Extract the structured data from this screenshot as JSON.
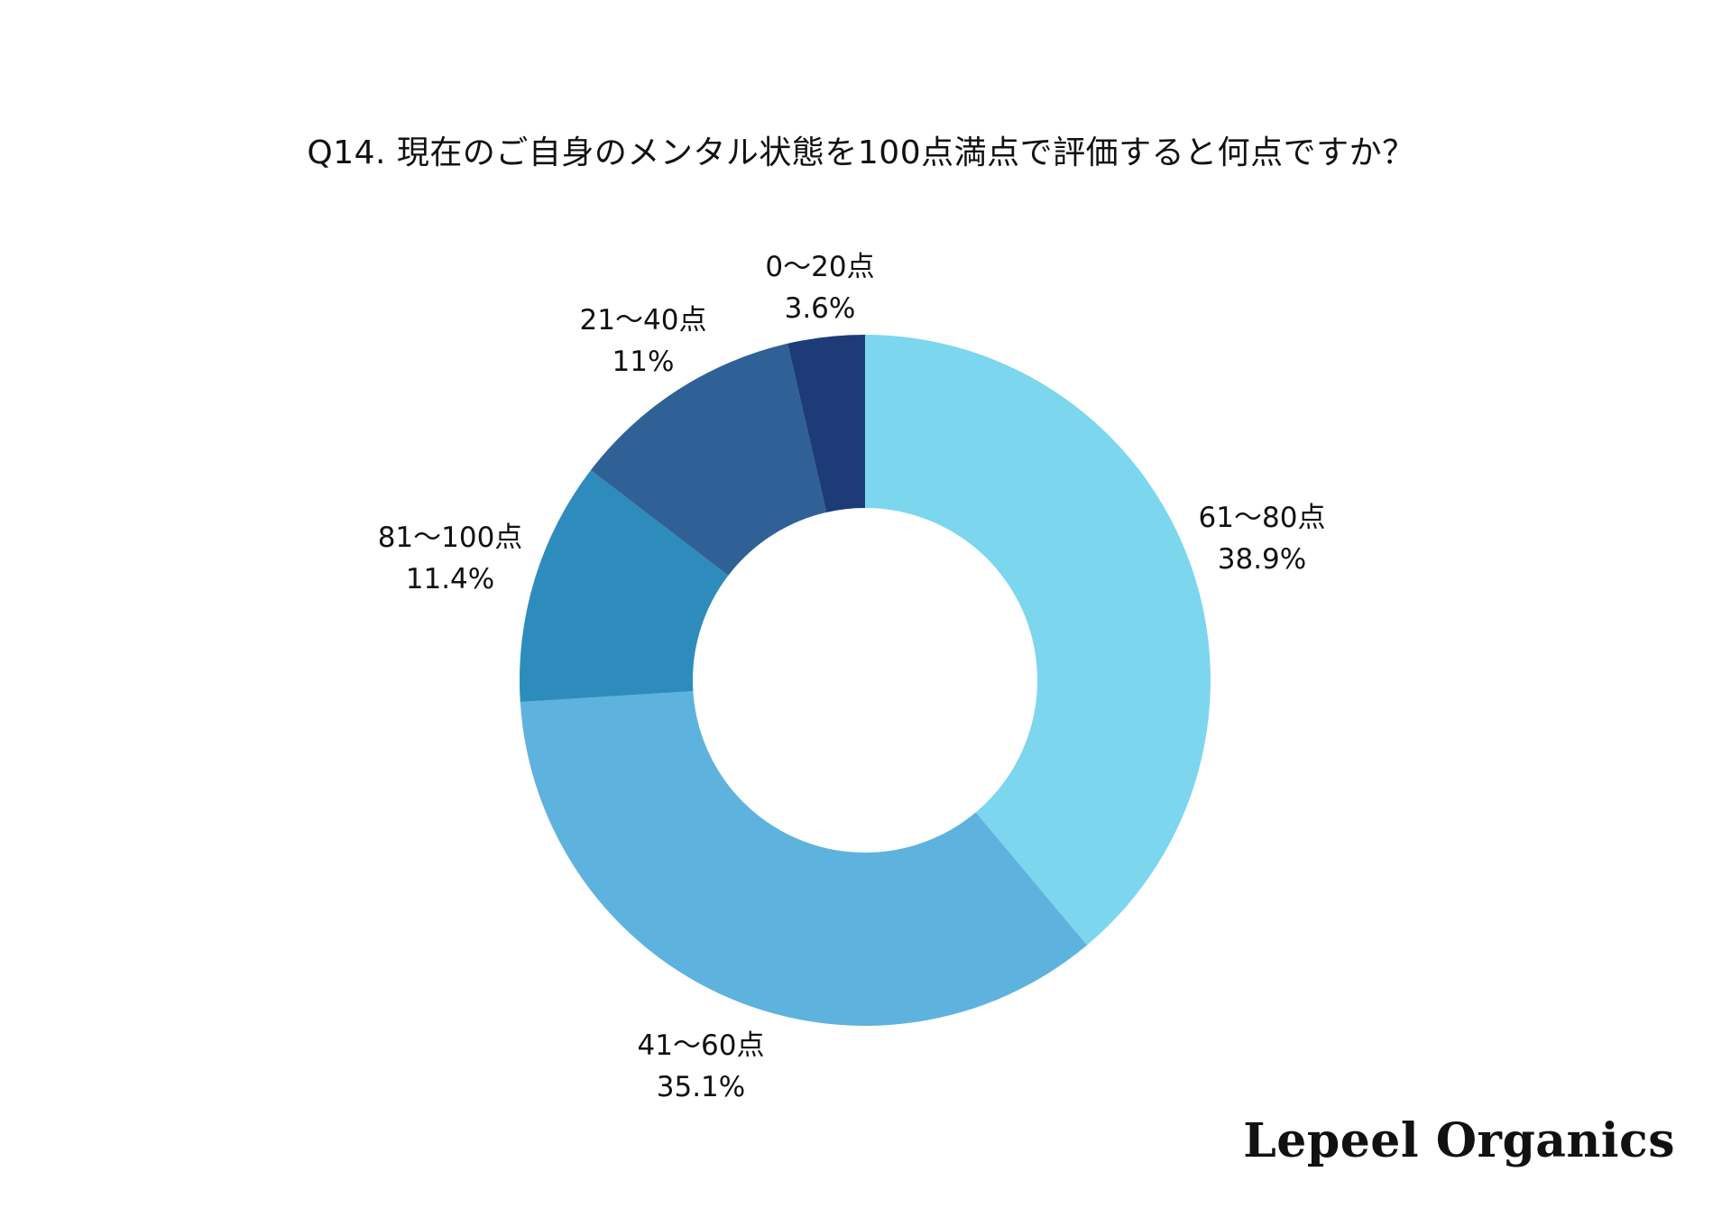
{
  "chart_data": {
    "type": "pie",
    "donut": true,
    "title": "Q14. 現在のご自身のメンタル状態を100点満点で評価すると何点ですか？",
    "start": "top, clockwise",
    "slices": [
      {
        "label": "61〜80点",
        "value": 38.9,
        "value_label": "38.9%",
        "color": "#7CD6EE"
      },
      {
        "label": "41〜60点",
        "value": 35.1,
        "value_label": "35.1%",
        "color": "#5EB2DE"
      },
      {
        "label": "81〜100点",
        "value": 11.4,
        "value_label": "11.4%",
        "color": "#2E8CBC"
      },
      {
        "label": "21〜40点",
        "value": 11,
        "value_label": "11%",
        "color": "#2F6197"
      },
      {
        "label": "0〜20点",
        "value": 3.6,
        "value_label": "3.6%",
        "color": "#1D3B77"
      }
    ]
  },
  "brand": {
    "logo_text": "Lepeel Organics"
  }
}
